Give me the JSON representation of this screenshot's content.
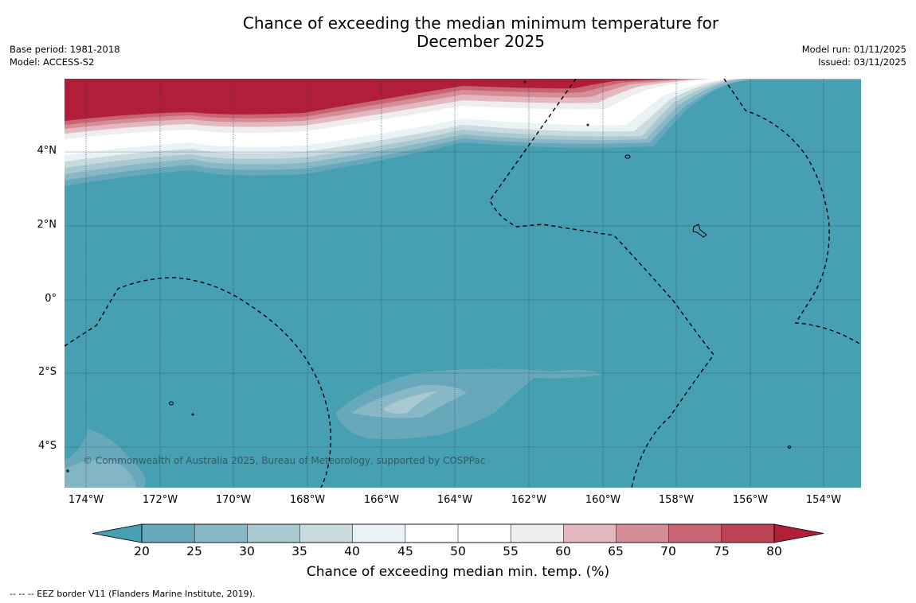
{
  "title": "Chance of exceeding the median minimum temperature for\nDecember 2025",
  "base_period": "Base period: 1981-2018",
  "model": "Model: ACCESS-S2",
  "model_run": "Model run: 01/11/2025",
  "issued": "Issued: 03/11/2025",
  "map": {
    "lat_labels": [
      "4°N",
      "2°N",
      "0°",
      "2°S",
      "4°S"
    ],
    "lon_labels": [
      "174°W",
      "172°W",
      "170°W",
      "168°W",
      "166°W",
      "164°W",
      "162°W",
      "160°W",
      "158°W",
      "156°W",
      "154°W"
    ],
    "copyright": "© Commonwealth of Australia 2025, Bureau of Meteorology, supported by COSPPac",
    "background_color": "#479fb2"
  },
  "colorbar": {
    "label": "Chance of exceeding median min. temp. (%)",
    "ticks": [
      "20",
      "25",
      "30",
      "35",
      "40",
      "45",
      "50",
      "55",
      "60",
      "65",
      "70",
      "75",
      "80"
    ],
    "under_color": "#479fb2",
    "over_color": "#b01e3a",
    "colors": [
      "#67a9ba",
      "#88b8c5",
      "#a9c9d0",
      "#cadbdf",
      "#e9f2f4",
      "#ffffff",
      "#ffffff",
      "#efeeef",
      "#e3b9bf",
      "#d58d97",
      "#c76672",
      "#bc4353"
    ]
  },
  "footnote": "--  --  -- EEZ border V11 (Flanders Marine Institute, 2019)."
}
